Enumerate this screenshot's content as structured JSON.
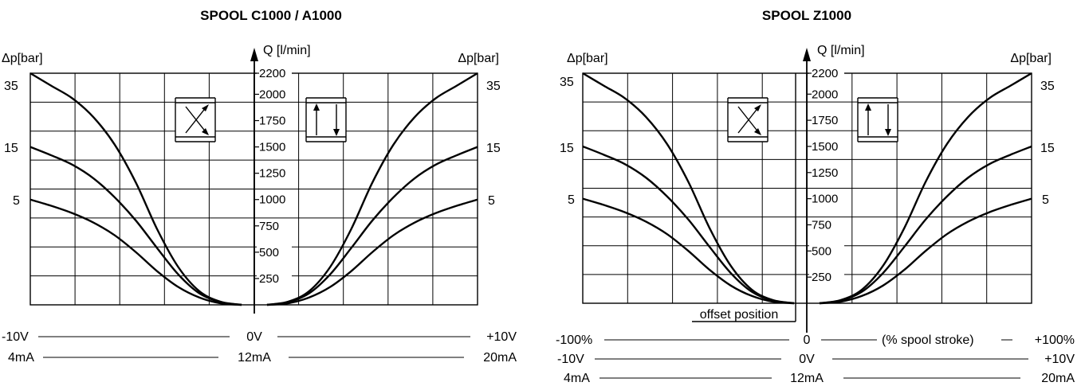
{
  "chart_data": [
    {
      "type": "line",
      "title": "SPOOL C1000 / A1000",
      "ylabel": "Q [l/min]",
      "dp_label_left": "Δp[bar]",
      "dp_label_right": "Δp[bar]",
      "y_ticks": [
        "250",
        "500",
        "750",
        "1000",
        "1250",
        "1500",
        "1750",
        "2000",
        "2200"
      ],
      "ylim": [
        0,
        2200
      ],
      "dp_ticks": [
        "35",
        "15",
        "5"
      ],
      "x_axis_rows": [
        {
          "left": "-10V",
          "center": "0V",
          "right": "+10V"
        },
        {
          "left": "4mA",
          "center": "12mA",
          "right": "20mA"
        }
      ],
      "series": [
        {
          "name": "35",
          "x": [
            0,
            10,
            20,
            30,
            40,
            50,
            60,
            70,
            80,
            90,
            100
          ],
          "y": [
            0,
            30,
            130,
            360,
            720,
            1160,
            1520,
            1780,
            1960,
            2080,
            2200
          ]
        },
        {
          "name": "15",
          "x": [
            0,
            10,
            20,
            30,
            40,
            50,
            60,
            70,
            80,
            90,
            100
          ],
          "y": [
            0,
            25,
            110,
            290,
            540,
            800,
            1020,
            1200,
            1330,
            1420,
            1500
          ]
        },
        {
          "name": "5",
          "x": [
            0,
            10,
            20,
            30,
            40,
            50,
            60,
            70,
            80,
            90,
            100
          ],
          "y": [
            0,
            15,
            70,
            170,
            320,
            500,
            660,
            780,
            870,
            940,
            1000
          ]
        }
      ]
    },
    {
      "type": "line",
      "title": "SPOOL Z1000",
      "ylabel": "Q [l/min]",
      "dp_label_left": "Δp[bar]",
      "dp_label_right": "Δp[bar]",
      "y_ticks": [
        "250",
        "500",
        "750",
        "1000",
        "1250",
        "1500",
        "1750",
        "2000",
        "2200"
      ],
      "ylim": [
        0,
        2200
      ],
      "dp_ticks": [
        "35",
        "15",
        "5"
      ],
      "annotation": "offset position",
      "x_axis_rows": [
        {
          "left": "-100%",
          "center": "0",
          "right": "+100%",
          "note": "(% spool stroke)"
        },
        {
          "left": "-10V",
          "center": "0V",
          "right": "+10V"
        },
        {
          "left": "4mA",
          "center": "12mA",
          "right": "20mA"
        }
      ],
      "series": [
        {
          "name": "35",
          "x": [
            0,
            10,
            20,
            30,
            40,
            50,
            60,
            70,
            80,
            90,
            100
          ],
          "y": [
            0,
            30,
            130,
            360,
            720,
            1160,
            1520,
            1780,
            1960,
            2080,
            2200
          ]
        },
        {
          "name": "15",
          "x": [
            0,
            10,
            20,
            30,
            40,
            50,
            60,
            70,
            80,
            90,
            100
          ],
          "y": [
            0,
            25,
            110,
            290,
            540,
            800,
            1020,
            1200,
            1330,
            1420,
            1500
          ]
        },
        {
          "name": "5",
          "x": [
            0,
            10,
            20,
            30,
            40,
            50,
            60,
            70,
            80,
            90,
            100
          ],
          "y": [
            0,
            15,
            70,
            170,
            320,
            500,
            660,
            780,
            870,
            940,
            1000
          ]
        }
      ]
    }
  ]
}
